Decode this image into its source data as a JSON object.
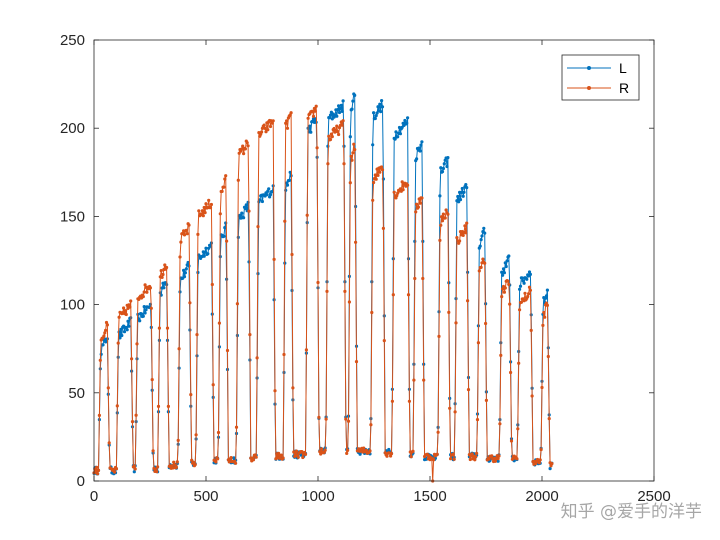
{
  "watermark": "知乎 @爱手的洋芋",
  "chart_data": {
    "type": "line",
    "xlim": [
      0,
      2500
    ],
    "ylim": [
      0,
      250
    ],
    "x_ticks": [
      0,
      500,
      1000,
      1500,
      2000,
      2500
    ],
    "y_ticks": [
      0,
      50,
      100,
      150,
      200,
      250
    ],
    "x_tick_labels": [
      "0",
      "500",
      "1000",
      "1500",
      "2000",
      "2500"
    ],
    "y_tick_labels": [
      "0",
      "50",
      "100",
      "150",
      "200",
      "250"
    ],
    "grid": false,
    "legend_position": "top-right",
    "marker": "dot",
    "point_spacing": 4,
    "pulses": [
      {
        "start": 30,
        "end": 60,
        "L": 78,
        "R": 84,
        "baseline": 6
      },
      {
        "start": 110,
        "end": 165,
        "L": 86,
        "R": 96,
        "baseline": 7
      },
      {
        "start": 195,
        "end": 255,
        "L": 96,
        "R": 108,
        "baseline": 7
      },
      {
        "start": 295,
        "end": 325,
        "L": 110,
        "R": 120,
        "baseline": 9
      },
      {
        "start": 385,
        "end": 425,
        "L": 118,
        "R": 140,
        "baseline": 10
      },
      {
        "start": 465,
        "end": 525,
        "L": 130,
        "R": 154,
        "baseline": 12
      },
      {
        "start": 565,
        "end": 590,
        "L": 140,
        "R": 167,
        "baseline": 12
      },
      {
        "start": 645,
        "end": 690,
        "L": 152,
        "R": 188,
        "baseline": 13
      },
      {
        "start": 735,
        "end": 800,
        "L": 162,
        "R": 200,
        "baseline": 14
      },
      {
        "start": 855,
        "end": 880,
        "L": 170,
        "R": 204,
        "baseline": 15
      },
      {
        "start": 955,
        "end": 995,
        "L": 202,
        "R": 208,
        "baseline": 17
      },
      {
        "start": 1045,
        "end": 1115,
        "L": 209,
        "R": 198,
        "baseline": 17
      },
      {
        "start": 1145,
        "end": 1165,
        "L": 215,
        "R": 186,
        "baseline": 17
      },
      {
        "start": 1245,
        "end": 1290,
        "L": 210,
        "R": 175,
        "baseline": 16
      },
      {
        "start": 1340,
        "end": 1400,
        "L": 200,
        "R": 166,
        "baseline": 15
      },
      {
        "start": 1435,
        "end": 1465,
        "L": 188,
        "R": 158,
        "baseline": 14
      },
      {
        "start": 1545,
        "end": 1580,
        "L": 178,
        "R": 150,
        "baseline": 14
      },
      {
        "start": 1620,
        "end": 1665,
        "L": 163,
        "R": 140,
        "baseline": 14
      },
      {
        "start": 1720,
        "end": 1745,
        "L": 138,
        "R": 122,
        "baseline": 13
      },
      {
        "start": 1820,
        "end": 1855,
        "L": 122,
        "R": 110,
        "baseline": 13
      },
      {
        "start": 1900,
        "end": 1950,
        "L": 115,
        "R": 104,
        "baseline": 11
      },
      {
        "start": 2005,
        "end": 2025,
        "L": 104,
        "R": 97,
        "baseline": 9
      }
    ],
    "x_end": 2045,
    "dropout": {
      "x": 1512,
      "R": 0
    },
    "series": [
      {
        "name": "L",
        "color": "#0072BD"
      },
      {
        "name": "R",
        "color": "#D95319"
      }
    ]
  }
}
